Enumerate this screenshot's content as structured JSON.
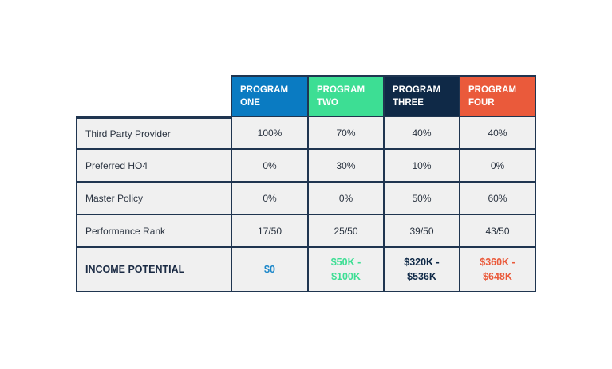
{
  "programs": [
    {
      "label": "PROGRAM\nONE",
      "color": "#0a7bc2"
    },
    {
      "label": "PROGRAM\nTWO",
      "color": "#3dde94"
    },
    {
      "label": "PROGRAM\nTHREE",
      "color": "#0f2947"
    },
    {
      "label": "PROGRAM\nFOUR",
      "color": "#ea5a3b"
    }
  ],
  "rows": [
    {
      "label": "Third Party Provider",
      "values": [
        "100%",
        "70%",
        "40%",
        "40%"
      ]
    },
    {
      "label": "Preferred HO4",
      "values": [
        "0%",
        "30%",
        "10%",
        "0%"
      ]
    },
    {
      "label": "Master Policy",
      "values": [
        "0%",
        "0%",
        "50%",
        "60%"
      ]
    },
    {
      "label": "Performance Rank",
      "values": [
        "17/50",
        "25/50",
        "39/50",
        "43/50"
      ]
    }
  ],
  "income": {
    "label": "INCOME POTENTIAL",
    "values": [
      {
        "text": "$0",
        "color": "#1a86c9"
      },
      {
        "text": "$50K -\n$100K",
        "color": "#3dde94"
      },
      {
        "text": "$320K -\n$536K",
        "color": "#0f2947"
      },
      {
        "text": "$360K -\n$648K",
        "color": "#ea5a3b"
      }
    ]
  }
}
